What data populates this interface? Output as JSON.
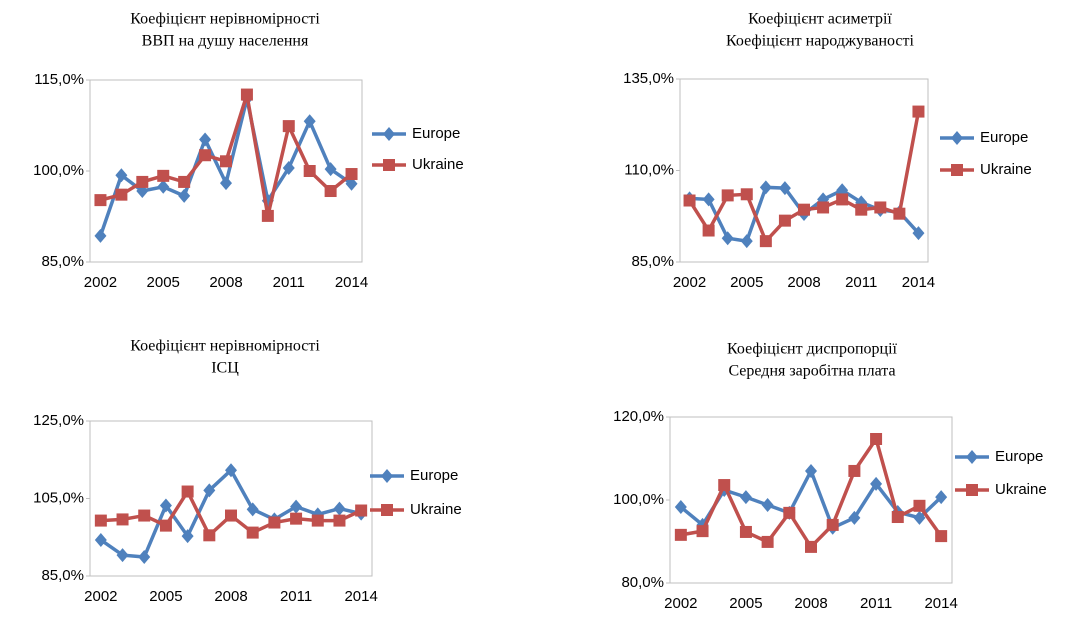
{
  "chart_data": [
    {
      "type": "line",
      "title": [
        "Коефіцієнт нерівномірності",
        "ВВП на душу  населення"
      ],
      "categories": [
        "2002",
        null,
        null,
        "2005",
        null,
        null,
        "2008",
        null,
        null,
        "2011",
        null,
        null,
        "2014"
      ],
      "ylim": [
        85,
        115
      ],
      "yticks": [
        {
          "value": 85,
          "label": "85,0%"
        },
        {
          "value": 100,
          "label": "100,0%"
        },
        {
          "value": 115,
          "label": "115,0%"
        }
      ],
      "series": [
        {
          "name": "Europe",
          "color": "#4f81bd",
          "marker": "diamond",
          "values": [
            89.3,
            99.3,
            96.7,
            97.4,
            95.9,
            105.2,
            98.0,
            111.9,
            95.1,
            100.5,
            108.2,
            100.3,
            97.9
          ]
        },
        {
          "name": "Ukraine",
          "color": "#c0504d",
          "marker": "square",
          "values": [
            95.2,
            96.1,
            98.2,
            99.2,
            98.2,
            102.6,
            101.6,
            112.6,
            92.6,
            107.4,
            100.0,
            96.7,
            99.5
          ]
        }
      ]
    },
    {
      "type": "line",
      "title": [
        "Коефіцієнт асиметрії",
        "Коефіцієнт народжуваності"
      ],
      "categories": [
        "2002",
        null,
        null,
        "2005",
        null,
        null,
        "2008",
        null,
        null,
        "2011",
        null,
        null,
        "2014"
      ],
      "ylim": [
        85,
        135
      ],
      "yticks": [
        {
          "value": 85,
          "label": "85,0%"
        },
        {
          "value": 110,
          "label": "110,0%"
        },
        {
          "value": 135,
          "label": "135,0%"
        }
      ],
      "series": [
        {
          "name": "Europe",
          "color": "#4f81bd",
          "marker": "diamond",
          "values": [
            102.4,
            102.1,
            91.5,
            90.7,
            105.4,
            105.2,
            98.1,
            102.1,
            104.6,
            101.3,
            99.2,
            98.6,
            92.9
          ]
        },
        {
          "name": "Ukraine",
          "color": "#c0504d",
          "marker": "square",
          "values": [
            101.8,
            93.6,
            103.2,
            103.5,
            90.7,
            96.3,
            99.3,
            99.9,
            102.1,
            99.3,
            99.9,
            98.2,
            126.1
          ]
        }
      ]
    },
    {
      "type": "line",
      "title": [
        "Коефіцієнт нерівномірності",
        "ІСЦ"
      ],
      "categories": [
        "2002",
        null,
        null,
        "2005",
        null,
        null,
        "2008",
        null,
        null,
        "2011",
        null,
        null,
        "2014"
      ],
      "ylim": [
        85,
        125
      ],
      "yticks": [
        {
          "value": 85,
          "label": "85,0%"
        },
        {
          "value": 105,
          "label": "105,0%"
        },
        {
          "value": 125,
          "label": "125,0%"
        }
      ],
      "series": [
        {
          "name": "Europe",
          "color": "#4f81bd",
          "marker": "diamond",
          "values": [
            94.3,
            90.4,
            89.9,
            103.2,
            95.3,
            107.1,
            112.3,
            102.2,
            99.6,
            102.9,
            100.9,
            102.4,
            101.1
          ]
        },
        {
          "name": "Ukraine",
          "color": "#c0504d",
          "marker": "square",
          "values": [
            99.3,
            99.6,
            100.6,
            98.0,
            106.8,
            95.5,
            100.6,
            96.2,
            98.8,
            99.8,
            99.3,
            99.3,
            101.9
          ]
        }
      ]
    },
    {
      "type": "line",
      "title": [
        "Коефіцієнт диспропорції",
        "Середня заробітна плата"
      ],
      "categories": [
        "2002",
        null,
        null,
        "2005",
        null,
        null,
        "2008",
        null,
        null,
        "2011",
        null,
        null,
        "2014"
      ],
      "ylim": [
        80,
        120
      ],
      "yticks": [
        {
          "value": 80,
          "label": "80,0%"
        },
        {
          "value": 100,
          "label": "100,0%"
        },
        {
          "value": 120,
          "label": "120,0%"
        }
      ],
      "series": [
        {
          "name": "Europe",
          "color": "#4f81bd",
          "marker": "diamond",
          "values": [
            98.3,
            94.0,
            102.4,
            100.7,
            98.8,
            96.9,
            107.0,
            93.3,
            95.7,
            103.9,
            97.1,
            95.7,
            100.7
          ]
        },
        {
          "name": "Ukraine",
          "color": "#c0504d",
          "marker": "square",
          "values": [
            91.6,
            92.5,
            103.6,
            92.3,
            89.9,
            96.9,
            88.7,
            94.0,
            107.0,
            114.7,
            95.9,
            98.6,
            91.3
          ]
        }
      ]
    }
  ]
}
